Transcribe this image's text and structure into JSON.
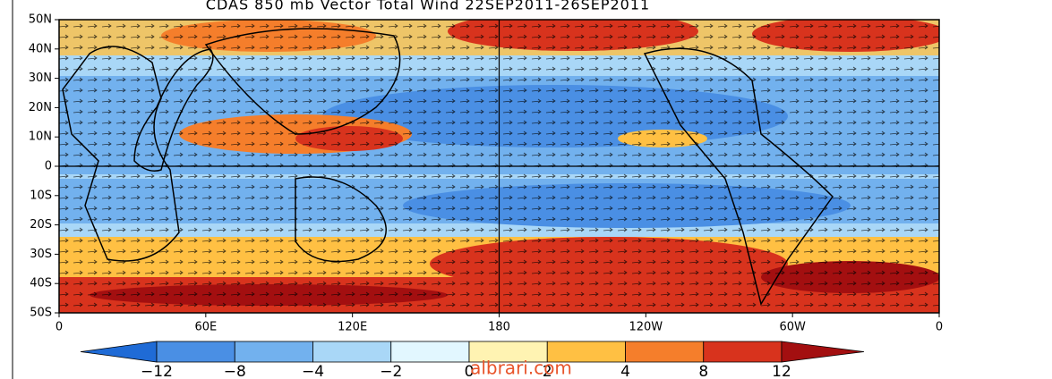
{
  "title": "CDAS 850 mb Vector Total Wind 22SEP2011-26SEP2011",
  "lat_labels": [
    "50N",
    "40N",
    "30N",
    "20N",
    "10N",
    "0",
    "10S",
    "20S",
    "30S",
    "40S",
    "50S"
  ],
  "lon_labels": [
    "0",
    "60E",
    "120E",
    "180",
    "120W",
    "60W",
    "0"
  ],
  "colorbar": {
    "labels": [
      "−12",
      "−8",
      "−4",
      "−2",
      "0",
      "2",
      "4",
      "8",
      "12"
    ],
    "colors": [
      "#1f6bd6",
      "#4a8fe4",
      "#72b1ee",
      "#a9d7f7",
      "#e2f7ff",
      "#fff3b2",
      "#ffc043",
      "#f57e2b",
      "#d8331d",
      "#a30f10"
    ]
  },
  "watermark": "albrari.com"
}
